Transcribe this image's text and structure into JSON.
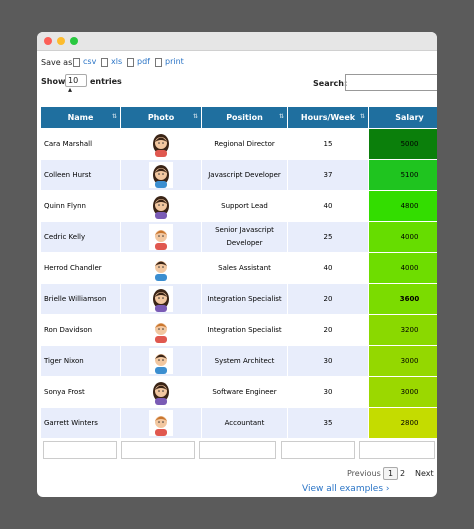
{
  "toolbar": {
    "save_as": "Save as",
    "exports": [
      "csv",
      "xls",
      "pdf",
      "print"
    ],
    "show": "Show",
    "page_length": "10",
    "entries": "entries",
    "search": "Search:"
  },
  "table": {
    "columns": [
      "Name",
      "Photo",
      "Position",
      "Hours/Week",
      "Salary"
    ],
    "rows": [
      {
        "name": "Cara Marshall",
        "position": "Regional Director",
        "hours": 15,
        "salary": 5000,
        "salary_color": "#0b7f0b",
        "avatar": "f"
      },
      {
        "name": "Colleen Hurst",
        "position": "Javascript Developer",
        "hours": 37,
        "salary": 5100,
        "salary_color": "#1fc41f",
        "avatar": "f"
      },
      {
        "name": "Quinn Flynn",
        "position": "Support Lead",
        "hours": 40,
        "salary": 4800,
        "salary_color": "#33dd00",
        "avatar": "f"
      },
      {
        "name": "Cedric Kelly",
        "position": "Senior Javascript Developer",
        "hours": 25,
        "salary": 4000,
        "salary_color": "#66dd00",
        "avatar": "m"
      },
      {
        "name": "Herrod Chandler",
        "position": "Sales Assistant",
        "hours": 40,
        "salary": 4000,
        "salary_color": "#6edd00",
        "avatar": "m"
      },
      {
        "name": "Brielle Williamson",
        "position": "Integration Specialist",
        "hours": 20,
        "salary": 3600,
        "salary_color": "#7bdc00",
        "avatar": "f"
      },
      {
        "name": "Ron Davidson",
        "position": "Integration Specialist",
        "hours": 20,
        "salary": 3200,
        "salary_color": "#8ad900",
        "avatar": "m"
      },
      {
        "name": "Tiger Nixon",
        "position": "System Architect",
        "hours": 30,
        "salary": 3000,
        "salary_color": "#94d800",
        "avatar": "m"
      },
      {
        "name": "Sonya Frost",
        "position": "Software Engineer",
        "hours": 30,
        "salary": 3000,
        "salary_color": "#9bd800",
        "avatar": "f"
      },
      {
        "name": "Garrett Winters",
        "position": "Accountant",
        "hours": 35,
        "salary": 2800,
        "salary_color": "#c4dc00",
        "avatar": "m"
      }
    ]
  },
  "pagination": {
    "previous": "Previous",
    "pages": [
      "1",
      "2"
    ],
    "next": "Next"
  },
  "footer_link": "View all examples ›"
}
